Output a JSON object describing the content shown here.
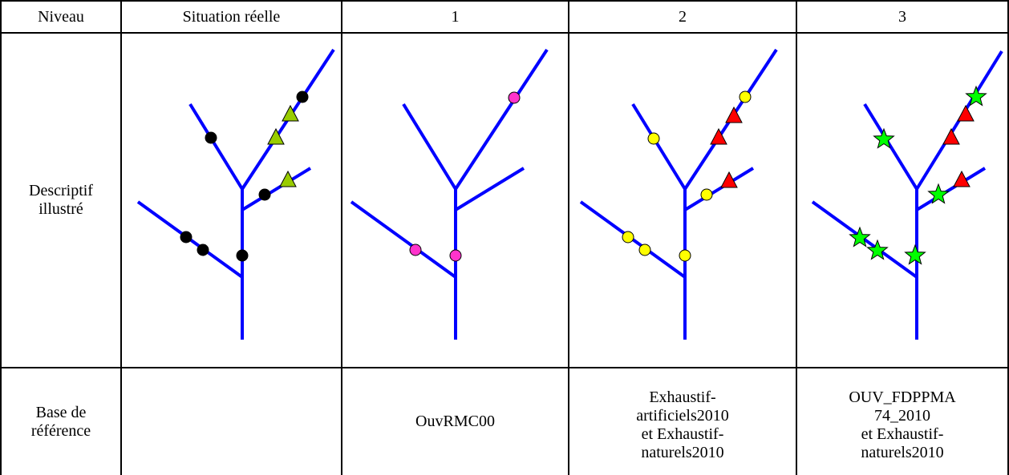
{
  "header": {
    "niveau": "Niveau",
    "situation": "Situation réelle",
    "level1": "1",
    "level2": "2",
    "level3": "3"
  },
  "row_descriptif": {
    "label": "Descriptif\nillustré"
  },
  "row_base": {
    "label": "Base de\nréférence",
    "situation": "",
    "level1": "OuvRMC00",
    "level2": "Exhaustif-\nartificiels2010\net Exhaustif-\nnaturels2010",
    "level3": "OUV_FDPPMA\n74_2010\net Exhaustif-\nnaturels2010"
  },
  "colors": {
    "river": "#0000ff",
    "black_marker": "#000000",
    "olive_marker": "#99cc00",
    "magenta_marker": "#ff33cc",
    "yellow_marker": "#ffff00",
    "red_marker": "#ff0000",
    "green_marker": "#00ff00"
  }
}
